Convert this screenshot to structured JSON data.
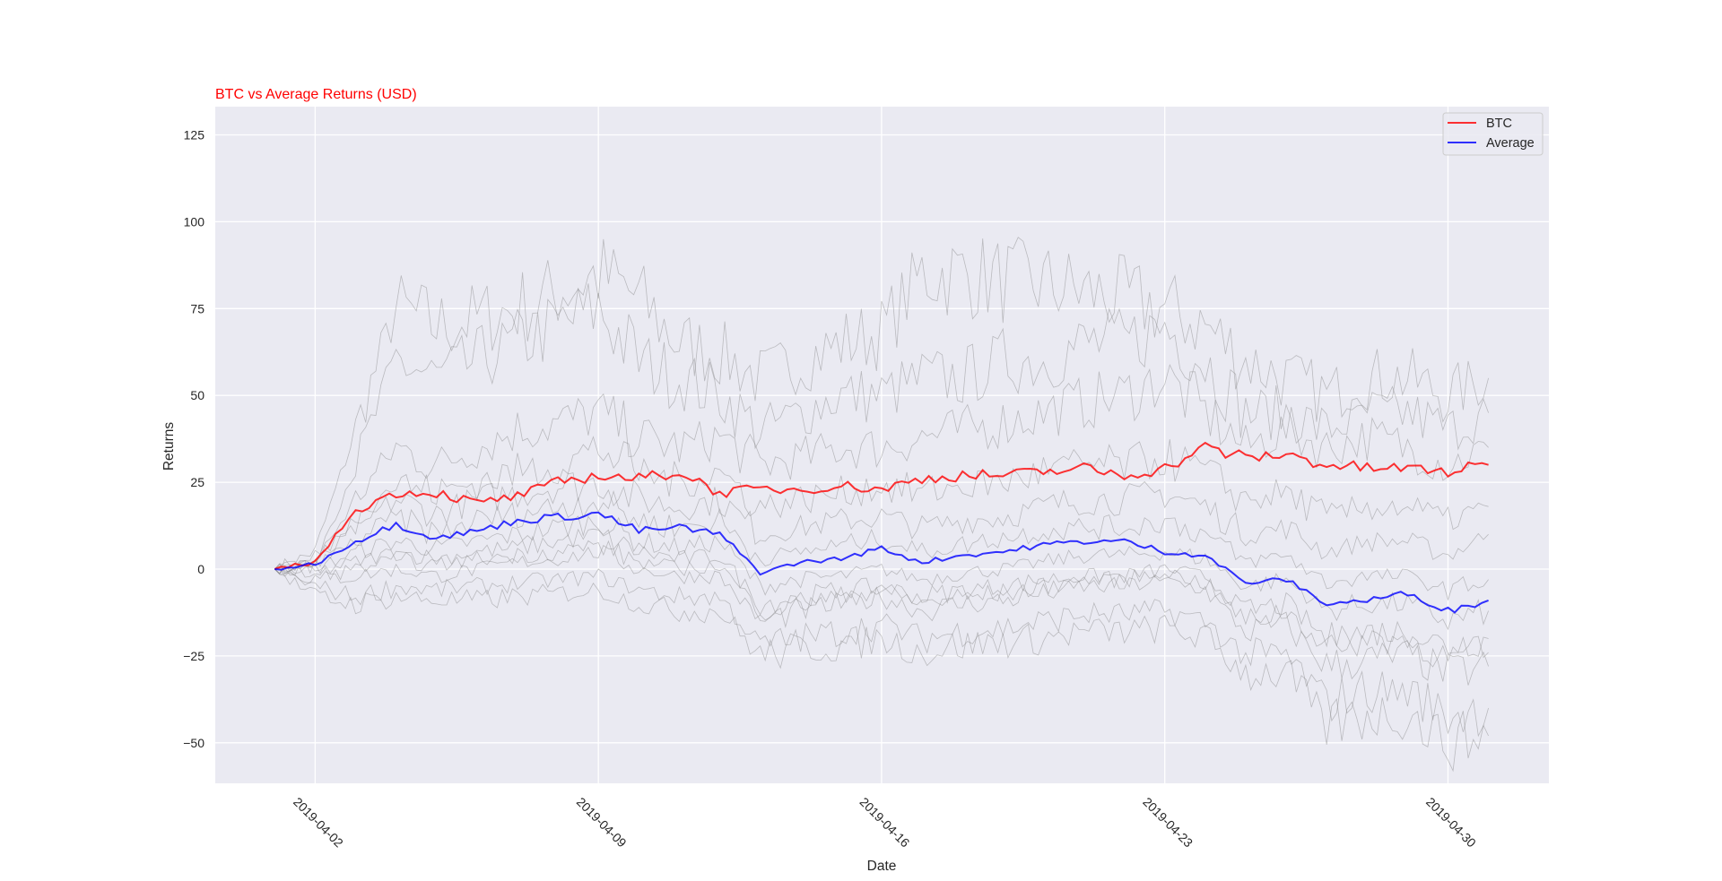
{
  "chart_data": {
    "type": "line",
    "title": "BTC vs Average Returns (USD)",
    "xlabel": "Date",
    "ylabel": "Returns",
    "x_start": "2019-04-01",
    "x_unit": "days since 2019-04-01",
    "xlim_days": [
      -1.5,
      31.5
    ],
    "ylim": [
      -61,
      133
    ],
    "x_ticks": [
      {
        "day": 1,
        "label": "2019-04-02"
      },
      {
        "day": 8,
        "label": "2019-04-09"
      },
      {
        "day": 15,
        "label": "2019-04-16"
      },
      {
        "day": 22,
        "label": "2019-04-23"
      },
      {
        "day": 29,
        "label": "2019-04-30"
      }
    ],
    "y_ticks": [
      {
        "value": 125,
        "label": "125"
      },
      {
        "value": 100,
        "label": "100"
      },
      {
        "value": 75,
        "label": "75"
      },
      {
        "value": 50,
        "label": "50"
      },
      {
        "value": 25,
        "label": "25"
      },
      {
        "value": 0,
        "label": "0"
      },
      {
        "value": -25,
        "label": "−25"
      },
      {
        "value": -50,
        "label": "−50"
      }
    ],
    "grid": true,
    "legend_position": "top-right",
    "series": [
      {
        "name": "BTC",
        "color": "#ff0000",
        "values": [
          0,
          2,
          17,
          22,
          22,
          19,
          21,
          25,
          27,
          26,
          28,
          22,
          23,
          23,
          24,
          23,
          26,
          27,
          27,
          28,
          29,
          27,
          29,
          35,
          32,
          33,
          30,
          29,
          29,
          28,
          30
        ]
      },
      {
        "name": "Average",
        "color": "#0000ff",
        "values": [
          0,
          1.5,
          8,
          13,
          9,
          11,
          14,
          15,
          16,
          11,
          12,
          10,
          -1,
          2,
          3,
          6,
          2,
          4,
          5,
          7,
          8,
          8,
          5,
          4,
          -4,
          -3,
          -10,
          -9,
          -7,
          -12,
          -9
        ]
      }
    ],
    "background_series_color": "#808080",
    "background_series": [
      [
        0,
        5,
        40,
        75,
        70,
        72,
        75,
        80,
        85,
        78,
        65,
        62,
        55,
        60,
        65,
        68,
        85,
        85,
        83,
        82,
        80,
        78,
        75,
        70,
        60,
        55,
        50,
        55,
        55,
        50,
        55
      ],
      [
        0,
        3,
        30,
        60,
        55,
        60,
        65,
        70,
        75,
        60,
        55,
        50,
        40,
        45,
        50,
        50,
        55,
        55,
        60,
        60,
        65,
        65,
        70,
        60,
        45,
        45,
        40,
        45,
        45,
        40,
        45
      ],
      [
        0,
        2,
        20,
        35,
        30,
        35,
        40,
        42,
        45,
        38,
        35,
        38,
        30,
        32,
        35,
        35,
        38,
        40,
        42,
        45,
        48,
        50,
        55,
        45,
        35,
        40,
        35,
        38,
        35,
        30,
        35
      ],
      [
        0,
        1,
        12,
        20,
        16,
        20,
        22,
        24,
        25,
        20,
        18,
        20,
        10,
        12,
        14,
        15,
        12,
        14,
        15,
        18,
        20,
        20,
        22,
        18,
        10,
        12,
        5,
        8,
        8,
        4,
        10
      ],
      [
        0,
        0,
        5,
        8,
        6,
        8,
        10,
        12,
        14,
        8,
        6,
        8,
        -5,
        -3,
        -2,
        0,
        -3,
        -1,
        0,
        2,
        4,
        4,
        5,
        3,
        -5,
        -3,
        -12,
        -10,
        -10,
        -15,
        -12
      ],
      [
        0,
        -1,
        2,
        5,
        3,
        5,
        6,
        8,
        10,
        5,
        3,
        4,
        -10,
        -8,
        -6,
        -5,
        -8,
        -6,
        -5,
        -3,
        -2,
        -2,
        0,
        -2,
        -12,
        -10,
        -20,
        -18,
        -18,
        -22,
        -20
      ],
      [
        0,
        -3,
        -2,
        0,
        -2,
        0,
        2,
        3,
        5,
        0,
        -2,
        -2,
        -15,
        -12,
        -10,
        -8,
        -12,
        -10,
        -9,
        -7,
        -5,
        -5,
        -3,
        -6,
        -18,
        -16,
        -28,
        -26,
        -25,
        -30,
        -28
      ],
      [
        0,
        -5,
        -8,
        -5,
        -6,
        -5,
        -4,
        -3,
        -2,
        -6,
        -8,
        -8,
        -22,
        -20,
        -18,
        -16,
        -20,
        -18,
        -17,
        -15,
        -13,
        -13,
        -12,
        -15,
        -25,
        -25,
        -38,
        -35,
        -35,
        -42,
        -40
      ],
      [
        0,
        -8,
        -10,
        -8,
        -9,
        -9,
        -8,
        -7,
        -6,
        -10,
        -12,
        -12,
        -25,
        -23,
        -22,
        -20,
        -24,
        -22,
        -21,
        -20,
        -18,
        -18,
        -17,
        -20,
        -30,
        -30,
        -45,
        -42,
        -42,
        -50,
        -48
      ],
      [
        0,
        2,
        15,
        25,
        22,
        25,
        28,
        30,
        35,
        28,
        25,
        28,
        18,
        20,
        22,
        24,
        22,
        24,
        25,
        28,
        30,
        30,
        32,
        28,
        20,
        22,
        15,
        18,
        18,
        14,
        18
      ],
      [
        0,
        1,
        8,
        15,
        10,
        14,
        16,
        18,
        20,
        14,
        12,
        14,
        3,
        5,
        7,
        9,
        5,
        7,
        9,
        11,
        12,
        12,
        14,
        10,
        2,
        4,
        -4,
        -2,
        -2,
        -6,
        -3
      ],
      [
        0,
        -2,
        0,
        3,
        1,
        3,
        4,
        5,
        7,
        2,
        0,
        1,
        -12,
        -10,
        -8,
        -6,
        -10,
        -8,
        -7,
        -5,
        -3,
        -3,
        -1,
        -4,
        -15,
        -12,
        -22,
        -20,
        -20,
        -26,
        -24
      ]
    ]
  }
}
